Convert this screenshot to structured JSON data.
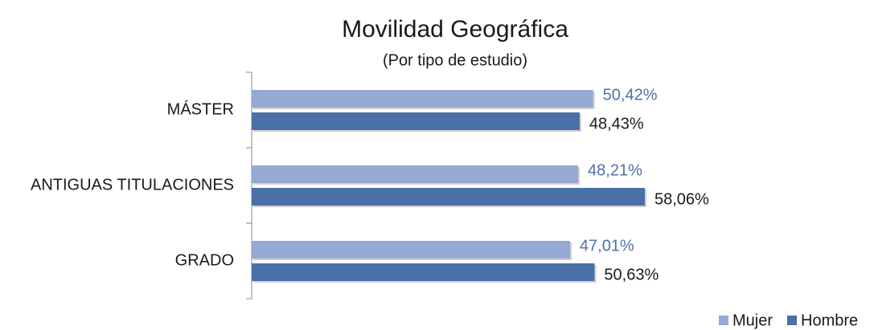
{
  "chart_data": {
    "type": "hbar",
    "title": "Movilidad Geográfica",
    "subtitle": "(Por tipo de estudio)",
    "categories": [
      "MÁSTER",
      "ANTIGUAS TITULACIONES",
      "GRADO"
    ],
    "series": [
      {
        "name": "Mujer",
        "color": "#95a9d4",
        "values": [
          50.42,
          48.21,
          47.01
        ],
        "value_labels": [
          "50,42%",
          "48,21%",
          "47,01%"
        ]
      },
      {
        "name": "Hombre",
        "color": "#4a70a8",
        "values": [
          48.43,
          58.06,
          50.63
        ],
        "value_labels": [
          "48,43%",
          "58,06%",
          "50,63%"
        ]
      }
    ],
    "xlim": [
      0,
      90
    ],
    "legend": "bottom-right"
  }
}
